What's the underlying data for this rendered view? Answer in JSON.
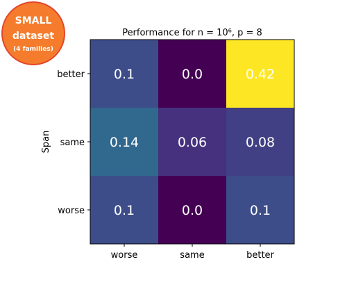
{
  "badge": {
    "line1": "SMALL",
    "line2": "dataset",
    "line3": "(4 families)"
  },
  "chart_data": {
    "type": "heatmap",
    "title": "Performance for n = 10⁶, p = 8",
    "xlabel": "",
    "ylabel": "Span",
    "x_categories": [
      "worse",
      "same",
      "better"
    ],
    "y_categories": [
      "better",
      "same",
      "worse"
    ],
    "values": [
      [
        0.1,
        0.0,
        0.42
      ],
      [
        0.14,
        0.06,
        0.08
      ],
      [
        0.1,
        0.0,
        0.1
      ]
    ],
    "cell_labels": [
      [
        "0.1",
        "0.0",
        "0.42"
      ],
      [
        "0.14",
        "0.06",
        "0.08"
      ],
      [
        "0.1",
        "0.0",
        "0.1"
      ]
    ],
    "colormap": "viridis",
    "vmin": 0.0,
    "vmax": 0.42,
    "grid": false,
    "colors": {
      "viridis_stops": [
        "#440154",
        "#482878",
        "#3e4989",
        "#31688e",
        "#26828e",
        "#1f9e89",
        "#35b779",
        "#6ece58",
        "#b5de2b",
        "#fde725"
      ],
      "badge_fill": "#f47c2c",
      "badge_border": "#e3462b"
    }
  }
}
